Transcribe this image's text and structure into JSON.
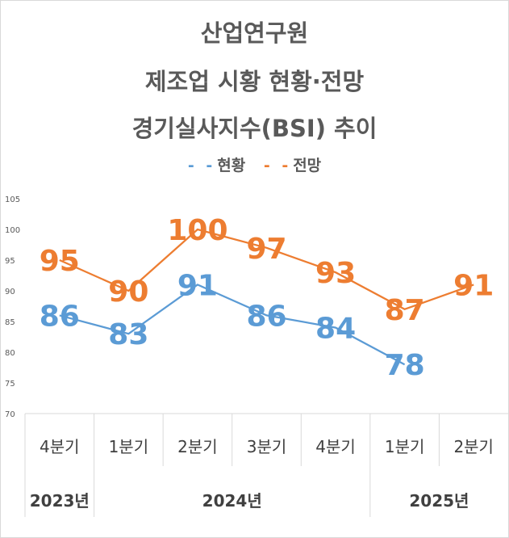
{
  "titles": [
    "산업연구원",
    "제조업 시황 현황·전망",
    "경기실사지수(BSI) 추이"
  ],
  "legend": [
    {
      "label": "현황",
      "color": "#5b9bd5"
    },
    {
      "label": "전망",
      "color": "#ed7d31"
    }
  ],
  "chart_data": {
    "type": "line",
    "title": "산업연구원 제조업 시황 현황·전망 경기실사지수(BSI) 추이",
    "categories": [
      "4분기",
      "1분기",
      "2분기",
      "3분기",
      "4분기",
      "1분기",
      "2분기"
    ],
    "year_groups": [
      {
        "label": "2023년",
        "span": 1
      },
      {
        "label": "2024년",
        "span": 4
      },
      {
        "label": "2025년",
        "span": 2
      }
    ],
    "ylim": [
      70,
      105
    ],
    "yticks": [
      70,
      75,
      80,
      85,
      90,
      95,
      100,
      105
    ],
    "grid": false,
    "legend_position": "top",
    "series": [
      {
        "name": "현황",
        "color": "#5b9bd5",
        "values": [
          86,
          83,
          91,
          86,
          84,
          78,
          null
        ]
      },
      {
        "name": "전망",
        "color": "#ed7d31",
        "values": [
          95,
          90,
          100,
          97,
          93,
          87,
          91
        ]
      }
    ]
  }
}
